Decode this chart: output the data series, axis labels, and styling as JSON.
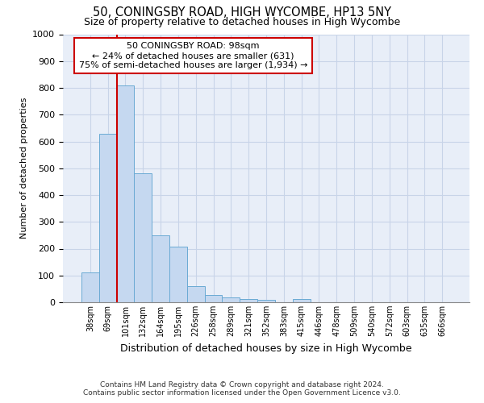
{
  "title_line1": "50, CONINGSBY ROAD, HIGH WYCOMBE, HP13 5NY",
  "title_line2": "Size of property relative to detached houses in High Wycombe",
  "xlabel": "Distribution of detached houses by size in High Wycombe",
  "ylabel": "Number of detached properties",
  "footer_line1": "Contains HM Land Registry data © Crown copyright and database right 2024.",
  "footer_line2": "Contains public sector information licensed under the Open Government Licence v3.0.",
  "categories": [
    "38sqm",
    "69sqm",
    "101sqm",
    "132sqm",
    "164sqm",
    "195sqm",
    "226sqm",
    "258sqm",
    "289sqm",
    "321sqm",
    "352sqm",
    "383sqm",
    "415sqm",
    "446sqm",
    "478sqm",
    "509sqm",
    "540sqm",
    "572sqm",
    "603sqm",
    "635sqm",
    "666sqm"
  ],
  "values": [
    110,
    630,
    810,
    480,
    250,
    207,
    60,
    28,
    18,
    13,
    10,
    0,
    12,
    0,
    0,
    0,
    0,
    0,
    0,
    0,
    0
  ],
  "bar_color": "#c5d8f0",
  "bar_edge_color": "#6aaad4",
  "ylim": [
    0,
    1000
  ],
  "yticks": [
    0,
    100,
    200,
    300,
    400,
    500,
    600,
    700,
    800,
    900,
    1000
  ],
  "annotation_text_line1": "50 CONINGSBY ROAD: 98sqm",
  "annotation_text_line2": "← 24% of detached houses are smaller (631)",
  "annotation_text_line3": "75% of semi-detached houses are larger (1,934) →",
  "annotation_box_color": "#ffffff",
  "annotation_box_edge_color": "#cc0000",
  "red_line_color": "#cc0000",
  "grid_color": "#c8d4e8",
  "background_color": "#e8eef8"
}
